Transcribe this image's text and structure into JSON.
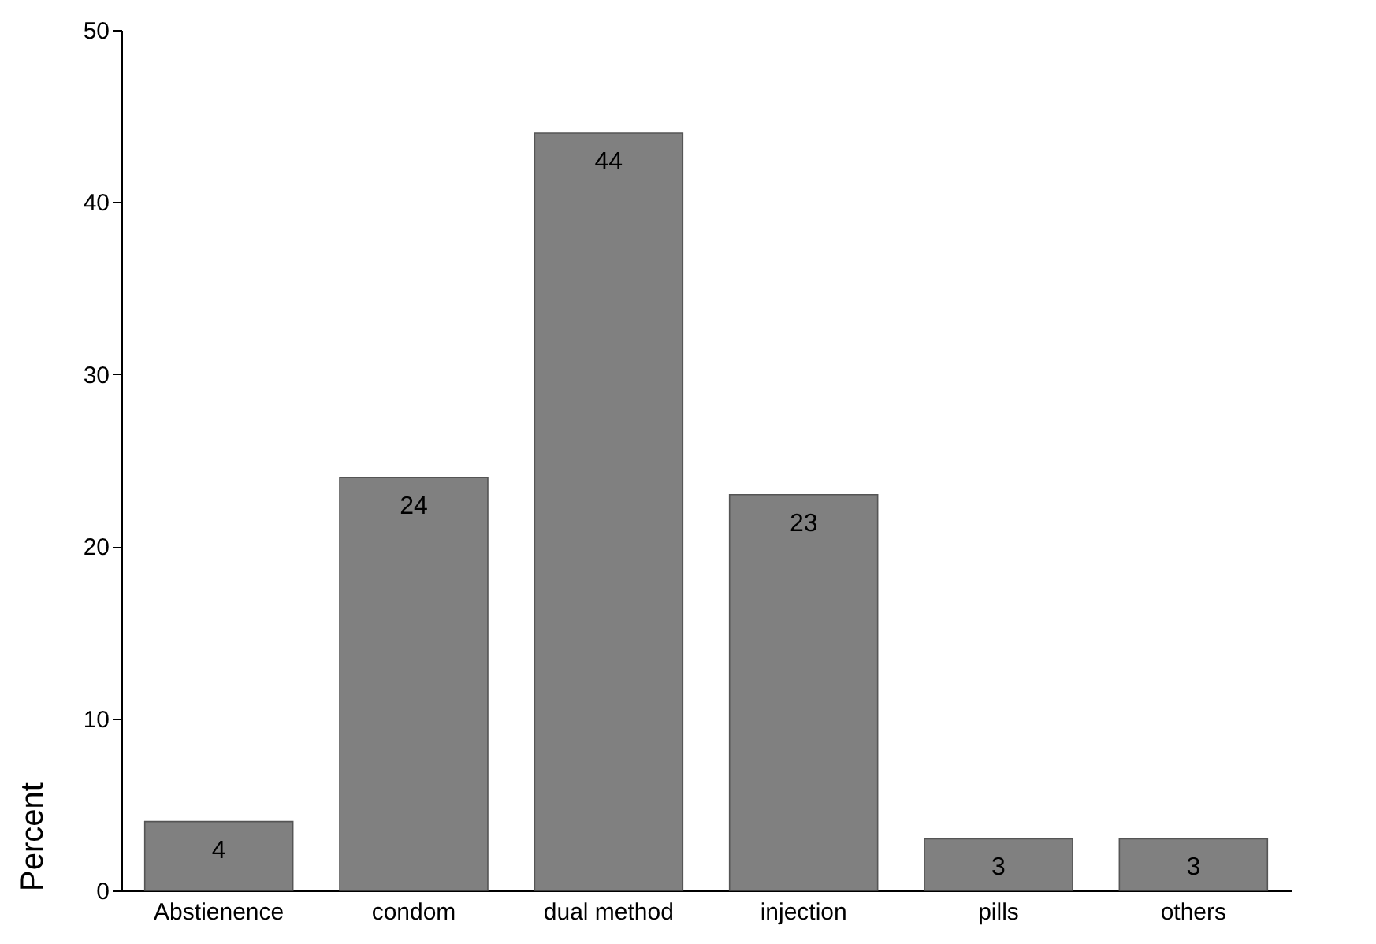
{
  "chart_data": {
    "type": "bar",
    "ylabel": "Percent",
    "categories": [
      "Abstienence",
      "condom",
      "dual method",
      "injection",
      "pills",
      "others"
    ],
    "values": [
      4,
      24,
      44,
      23,
      3,
      3
    ],
    "color": "#808080",
    "ylim": [
      0,
      50
    ],
    "yticks": [
      0,
      10,
      20,
      30,
      40,
      50
    ],
    "data_labels": true
  }
}
